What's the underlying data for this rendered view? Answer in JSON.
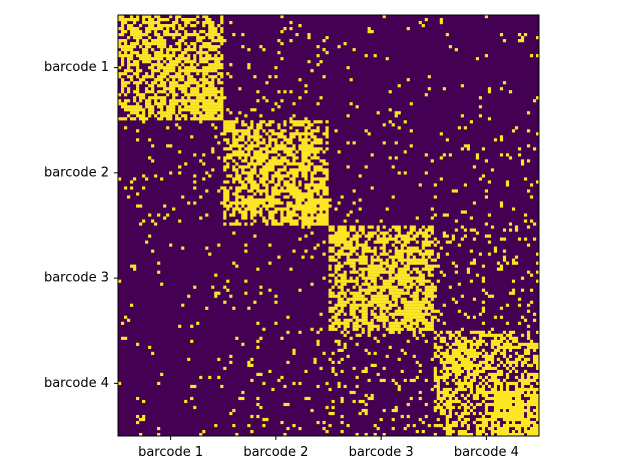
{
  "chart_data": {
    "type": "heatmap",
    "subtype": "binary co-occurrence matrix",
    "row_labels": [
      "barcode 1",
      "barcode 2",
      "barcode 3",
      "barcode 4"
    ],
    "col_labels": [
      "barcode 1",
      "barcode 2",
      "barcode 3",
      "barcode 4"
    ],
    "value_levels": [
      0,
      1
    ],
    "colors": {
      "low": "#440154",
      "high": "#fde725",
      "axes": "#000000",
      "background": "#ffffff"
    },
    "grid": false,
    "legend": "none",
    "block_density_estimate": [
      [
        0.55,
        0.06,
        0.03,
        0.02
      ],
      [
        0.06,
        0.55,
        0.05,
        0.06
      ],
      [
        0.03,
        0.05,
        0.55,
        0.1
      ],
      [
        0.02,
        0.06,
        0.1,
        0.5
      ]
    ]
  }
}
